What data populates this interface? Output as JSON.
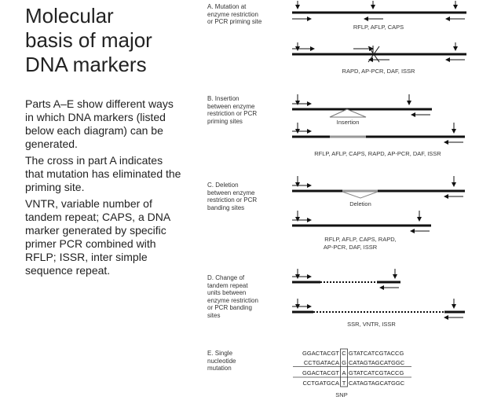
{
  "title_lines": [
    "Molecular",
    "basis of major",
    "DNA markers"
  ],
  "paragraphs": [
    "Parts A–E show different ways in which DNA markers (listed below each diagram) can be generated.",
    "The cross in part A indicates that mutation has eliminated the priming site.",
    "VNTR, variable number of tandem repeat; CAPS, a DNA marker generated by specific primer PCR combined with RFLP; ISSR, inter simple sequence repeat."
  ],
  "panels": {
    "a": {
      "lines": [
        "A. Mutation at",
        "enzyme restriction",
        "or PCR priming site"
      ],
      "marker1": "RFLP, AFLP, CAPS",
      "marker2": "RAPD, AP-PCR, DAF, ISSR"
    },
    "b": {
      "lines": [
        "B. Insertion",
        "between enzyme",
        "restriction or PCR",
        "priming sites"
      ],
      "insertion_label": "Insertion",
      "markers": "RFLP, AFLP, CAPS, RAPD, AP-PCR, DAF, ISSR"
    },
    "c": {
      "lines": [
        "C. Deletion",
        "between enzyme",
        "restriction or PCR",
        "banding sites"
      ],
      "deletion_label": "Deletion",
      "markers_line1": "RFLP, AFLP, CAPS, RAPD,",
      "markers_line2": "AP-PCR, DAF, ISSR"
    },
    "d": {
      "lines": [
        "D. Change of",
        "tandem repeat",
        "units between",
        "enzyme restriction",
        "or PCR banding",
        "sites"
      ],
      "markers": "SSR, VNTR, ISSR"
    },
    "e": {
      "lines": [
        "E. Single",
        "nucleotide",
        "mutation"
      ],
      "seq_left": [
        "GGACTACGT",
        "CCTGATACA",
        "GGACTACGT",
        "CCTGATGCA"
      ],
      "seq_mid": [
        "C",
        "G",
        "A",
        "T"
      ],
      "seq_right": [
        "GTATCATCGTACCG",
        "CATAGTAGCATGGC",
        "GTATCATCGTACCG",
        "CATAGTAGCATGGC"
      ],
      "snp_label": "SNP"
    }
  }
}
